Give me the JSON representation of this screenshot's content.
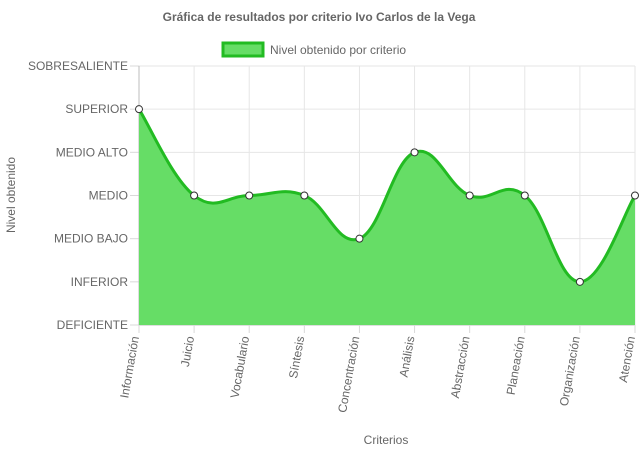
{
  "chart_data": {
    "type": "area",
    "title": "Gráfica de resultados por criterio Ivo Carlos de la Vega",
    "xlabel": "Criterios",
    "ylabel": "Nivel obtenido",
    "legend_position": "top",
    "grid": true,
    "categories": [
      "Información",
      "Juicio",
      "Vocabulario",
      "Síntesis",
      "Concentración",
      "Análisis",
      "Abstracción",
      "Planeación",
      "Organización",
      "Atención"
    ],
    "y_levels": [
      "DEFICIENTE",
      "INFERIOR",
      "MEDIO BAJO",
      "MEDIO",
      "MEDIO ALTO",
      "SUPERIOR",
      "SOBRESALIENTE"
    ],
    "ylim": [
      0,
      6
    ],
    "series": [
      {
        "name": "Nivel obtenido por criterio",
        "values": [
          5,
          3,
          3,
          3,
          2,
          4,
          3,
          3,
          1,
          3
        ],
        "fill_color": "#66dd66",
        "line_color": "#22bb22",
        "point_color": "#ffffff"
      }
    ]
  }
}
